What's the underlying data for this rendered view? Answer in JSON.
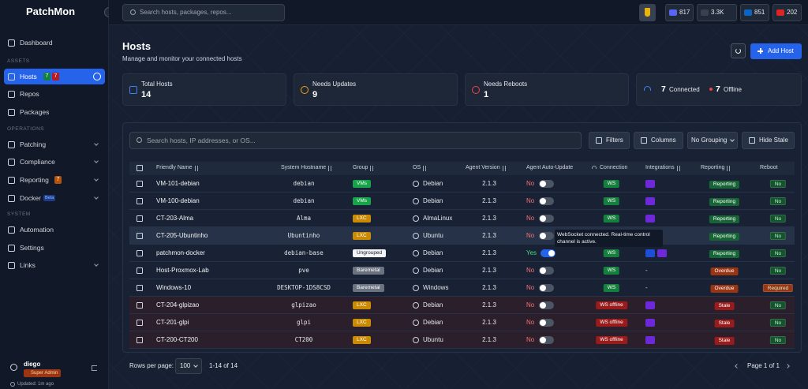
{
  "topbar": {
    "logo": "PatchMon",
    "search_placeholder": "Search hosts, packages, repos...",
    "stats": [
      {
        "value": 817,
        "color": "#5865f2"
      },
      {
        "value": "3.3K",
        "color": "#374151"
      },
      {
        "value": 851,
        "color": "#0a66c2"
      },
      {
        "value": 202,
        "color": "#dc2626"
      }
    ]
  },
  "sidebar": {
    "nav": [
      {
        "label": "Dashboard"
      },
      {
        "section": "ASSETS"
      },
      {
        "label": "Hosts",
        "active": true,
        "badges": [
          {
            "value": 7,
            "color": "#15803d"
          },
          {
            "value": 7,
            "color": "#b91c1c"
          }
        ]
      },
      {
        "label": "Repos"
      },
      {
        "label": "Packages"
      },
      {
        "section": "OPERATIONS"
      },
      {
        "label": "Patching",
        "expandable": true
      },
      {
        "label": "Compliance",
        "expandable": true
      },
      {
        "label": "Reporting",
        "expandable": true,
        "badges": [
          {
            "value": 7,
            "color": "#b45309"
          }
        ]
      },
      {
        "label": "Docker",
        "expandable": true,
        "tag": "Beta"
      },
      {
        "section": "SYSTEM"
      },
      {
        "label": "Automation"
      },
      {
        "label": "Settings"
      },
      {
        "label": "Links",
        "expandable": true
      }
    ],
    "user": {
      "name": "diego",
      "role": "Super Admin",
      "updated": "Updated: 1m ago"
    }
  },
  "header": {
    "title": "Hosts",
    "subtitle": "Manage and monitor your connected hosts",
    "add_button": "Add Host"
  },
  "stats": [
    {
      "label": "Total Hosts",
      "value": 14,
      "color": "#3b82f6"
    },
    {
      "label": "Needs Updates",
      "value": 9,
      "color": "#f59e0b"
    },
    {
      "label": "Needs Reboots",
      "value": 1,
      "color": "#ef4444"
    }
  ],
  "connection": {
    "connected": 7,
    "connected_label": "Connected",
    "offline": 7,
    "offline_label": "Offline"
  },
  "toolbar": {
    "search_placeholder": "Search hosts, IP addresses, or OS...",
    "filters": "Filters",
    "columns": "Columns",
    "grouping": "No Grouping",
    "hide_stale": "Hide Stale"
  },
  "table": {
    "headers": [
      "Friendly Name",
      "System Hostname",
      "Group",
      "OS",
      "Agent Version",
      "Agent Auto-Update",
      "Connection",
      "Integrations",
      "Reporting",
      "Reboot"
    ],
    "rows": [
      {
        "name": "VM-101-debian",
        "hostname": "debian",
        "group": "VMs",
        "group_color": "#16a34a",
        "os": "Debian",
        "version": "2.1.3",
        "auto_update": "No",
        "auto_update_color": "#f87171",
        "toggle": false,
        "connection": "WS",
        "connection_color": "#15803d",
        "integration_icons": 1,
        "reporting": "Reporting",
        "reporting_color": "#166534",
        "reboot": "No",
        "reboot_color": "#14532d"
      },
      {
        "name": "VM-100-debian",
        "hostname": "debian",
        "group": "VMs",
        "group_color": "#16a34a",
        "os": "Debian",
        "version": "2.1.3",
        "auto_update": "No",
        "auto_update_color": "#f87171",
        "toggle": false,
        "connection": "WS",
        "connection_color": "#15803d",
        "integration_icons": 1,
        "reporting": "Reporting",
        "reporting_color": "#166534",
        "reboot": "No",
        "reboot_color": "#14532d"
      },
      {
        "name": "CT-203-Alma",
        "hostname": "Alma",
        "group": "LXC",
        "group_color": "#ca8a04",
        "os": "AlmaLinux",
        "version": "2.1.3",
        "auto_update": "No",
        "auto_update_color": "#f87171",
        "toggle": false,
        "connection": "WS",
        "connection_color": "#15803d",
        "integration_icons": 1,
        "reporting": "Reporting",
        "reporting_color": "#166534",
        "reboot": "No",
        "reboot_color": "#14532d"
      },
      {
        "name": "CT-205-Ubuntinho",
        "hostname": "Ubuntinho",
        "group": "LXC",
        "group_color": "#ca8a04",
        "os": "Ubuntu",
        "version": "2.1.3",
        "auto_update": "No",
        "auto_update_color": "#f87171",
        "toggle": false,
        "reporting": "Reporting",
        "reporting_color": "#166534",
        "reboot": "No",
        "reboot_color": "#14532d",
        "row_color": "#263247"
      },
      {
        "name": "patchmon-docker",
        "hostname": "debian-base",
        "group": "Ungrouped",
        "group_color": "#f3f4f6",
        "group_text_color": "#111827",
        "os": "Debian",
        "version": "2.1.3",
        "auto_update": "Yes",
        "auto_update_color": "#4ade80",
        "toggle": true,
        "connection": "WS",
        "connection_color": "#15803d",
        "integration_icons": 2,
        "reporting": "Reporting",
        "reporting_color": "#166534",
        "reboot": "No",
        "reboot_color": "#14532d"
      },
      {
        "name": "Host-Proxmox-Lab",
        "hostname": "pve",
        "group": "Baremetal",
        "group_color": "#6b7280",
        "os": "Debian",
        "version": "2.1.3",
        "auto_update": "No",
        "auto_update_color": "#f87171",
        "toggle": false,
        "connection": "WS",
        "connection_color": "#15803d",
        "integrations": "-",
        "reporting": "Overdue",
        "reporting_color": "#9a3412",
        "reboot": "No",
        "reboot_color": "#14532d"
      },
      {
        "name": "Windows-10",
        "hostname": "DESKTOP-1DS8CSD",
        "group": "Baremetal",
        "group_color": "#6b7280",
        "os": "Windows",
        "version": "2.1.3",
        "auto_update": "No",
        "auto_update_color": "#f87171",
        "toggle": false,
        "connection": "WS",
        "connection_color": "#15803d",
        "integrations": "-",
        "reporting": "Overdue",
        "reporting_color": "#9a3412",
        "reboot": "Required",
        "reboot_color": "#9a3412"
      },
      {
        "name": "CT-204-glpizao",
        "hostname": "glpizao",
        "group": "LXC",
        "group_color": "#ca8a04",
        "os": "Debian",
        "version": "2.1.3",
        "auto_update": "No",
        "auto_update_color": "#f87171",
        "toggle": false,
        "connection": "WS offline",
        "connection_color": "#991b1b",
        "integration_icons": 1,
        "reporting": "Stale",
        "reporting_color": "#991b1b",
        "reboot": "No",
        "reboot_color": "#14532d",
        "row_color": "#2b1f2b"
      },
      {
        "name": "CT-201-glpi",
        "hostname": "glpi",
        "group": "LXC",
        "group_color": "#ca8a04",
        "os": "Debian",
        "version": "2.1.3",
        "auto_update": "No",
        "auto_update_color": "#f87171",
        "toggle": false,
        "connection": "WS offline",
        "connection_color": "#991b1b",
        "integration_icons": 1,
        "reporting": "Stale",
        "reporting_color": "#991b1b",
        "reboot": "No",
        "reboot_color": "#14532d",
        "row_color": "#2b1f2b"
      },
      {
        "name": "CT-200-CT200",
        "hostname": "CT200",
        "group": "LXC",
        "group_color": "#ca8a04",
        "os": "Ubuntu",
        "version": "2.1.3",
        "auto_update": "No",
        "auto_update_color": "#f87171",
        "toggle": false,
        "connection": "WS offline",
        "connection_color": "#991b1b",
        "integration_icons": 1,
        "reporting": "Stale",
        "reporting_color": "#991b1b",
        "reboot": "No",
        "reboot_color": "#14532d",
        "row_color": "#2b1f2b"
      }
    ]
  },
  "tooltip": {
    "text": "WebSocket connected. Real-time control channel is active."
  },
  "footer": {
    "rows_per_page": "Rows per page:",
    "page_size": 100,
    "range": "1-14 of 14",
    "page": "Page 1 of 1"
  }
}
